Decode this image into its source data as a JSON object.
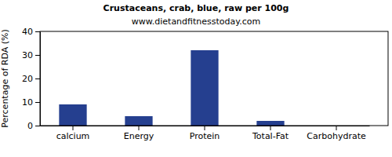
{
  "chart_data": {
    "type": "bar",
    "title": "Crustaceans, crab, blue, raw per 100g",
    "subtitle": "www.dietandfitnesstoday.com",
    "y_label": "Percentage of RDA (%)",
    "categories": [
      "calcium",
      "Energy",
      "Protein",
      "Total-Fat",
      "Carbohydrate"
    ],
    "values": [
      9,
      4,
      32,
      2,
      0
    ],
    "color": "#253f8f",
    "ylim": [
      0,
      40
    ],
    "yticks": [
      0,
      10,
      20,
      30,
      40
    ],
    "grid": false
  }
}
